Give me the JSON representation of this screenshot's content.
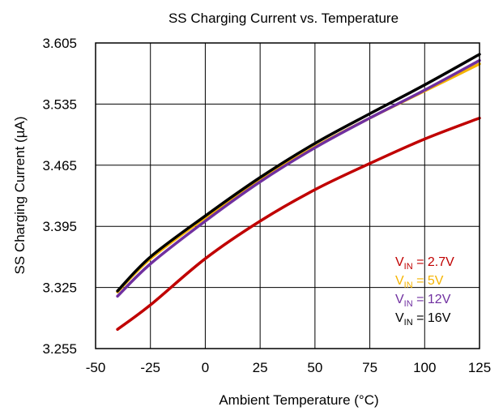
{
  "chart_data": {
    "type": "line",
    "title": "SS Charging Current vs. Temperature",
    "xlabel": "Ambient Temperature (°C)",
    "ylabel": "SS Charging Current (µA)",
    "xlim": [
      -50,
      125
    ],
    "ylim": [
      3.255,
      3.605
    ],
    "x_ticks": [
      "-50",
      "-25",
      "0",
      "25",
      "50",
      "75",
      "100",
      "125"
    ],
    "y_ticks": [
      "3.255",
      "3.325",
      "3.395",
      "3.465",
      "3.535",
      "3.605"
    ],
    "grid": true,
    "legend_position": "bottom-right",
    "x": [
      -40,
      -25,
      0,
      25,
      50,
      75,
      100,
      125
    ],
    "series": [
      {
        "name": "V_IN = 2.7V",
        "legend": {
          "prefix": "V",
          "sub": "IN",
          "suffix": " = 2.7V"
        },
        "color": "#c00000",
        "values": [
          3.277,
          3.305,
          3.358,
          3.401,
          3.437,
          3.467,
          3.495,
          3.519
        ]
      },
      {
        "name": "V_IN = 5V",
        "legend": {
          "prefix": "V",
          "sub": "IN",
          "suffix": " = 5V"
        },
        "color": "#f5b400",
        "values": [
          3.32,
          3.358,
          3.405,
          3.448,
          3.486,
          3.519,
          3.55,
          3.581
        ]
      },
      {
        "name": "V_IN = 12V",
        "legend": {
          "prefix": "V",
          "sub": "IN",
          "suffix": " = 12V"
        },
        "color": "#7030a0",
        "values": [
          3.315,
          3.352,
          3.401,
          3.446,
          3.485,
          3.519,
          3.551,
          3.585
        ]
      },
      {
        "name": "V_IN = 16V",
        "legend": {
          "prefix": "V",
          "sub": "IN",
          "suffix": " = 16V"
        },
        "color": "#000000",
        "values": [
          3.321,
          3.36,
          3.407,
          3.451,
          3.49,
          3.524,
          3.557,
          3.592
        ]
      }
    ]
  }
}
